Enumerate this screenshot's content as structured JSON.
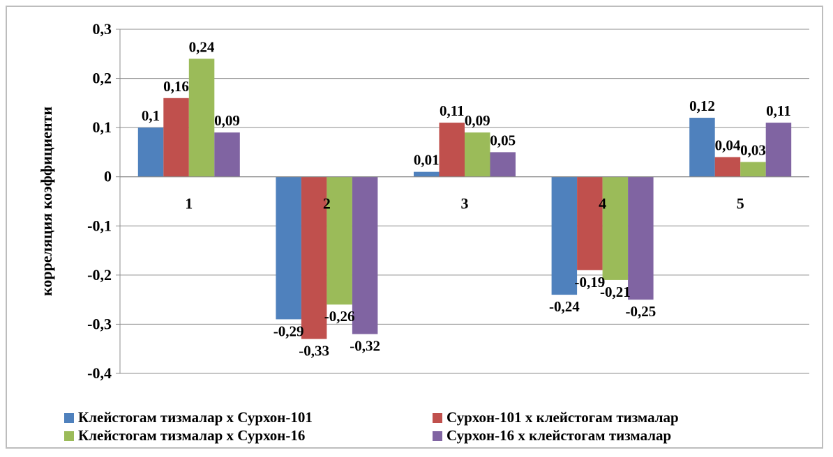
{
  "chart_data": {
    "type": "bar",
    "title": "",
    "xlabel": "",
    "ylabel": "корреляция коэффициенти",
    "ylim": [
      -0.4,
      0.3
    ],
    "yticks": [
      0.3,
      0.2,
      0.1,
      0,
      -0.1,
      -0.2,
      -0.3,
      -0.4
    ],
    "ytick_labels": [
      "0,3",
      "0,2",
      "0,1",
      "0",
      "-0,1",
      "-0,2",
      "-0,3",
      "-0,4"
    ],
    "grid": true,
    "legend_position": "bottom",
    "categories": [
      "1",
      "2",
      "3",
      "4",
      "5"
    ],
    "series": [
      {
        "name": "Клейстогам тизмалар х Сурхон-101",
        "color": "#4f81bd",
        "values": [
          0.1,
          -0.29,
          0.01,
          -0.24,
          0.12
        ],
        "labels": [
          "0,1",
          "-0,29",
          "0,01",
          "-0,24",
          "0,12"
        ]
      },
      {
        "name": "Сурхон-101 х клейстогам тизмалар",
        "color": "#c0504d",
        "values": [
          0.16,
          -0.33,
          0.11,
          -0.19,
          0.04
        ],
        "labels": [
          "0,16",
          "-0,33",
          "0,11",
          "-0,19",
          "0,04"
        ]
      },
      {
        "name": "Клейстогам тизмалар х Сурхон-16",
        "color": "#9bbb59",
        "values": [
          0.24,
          -0.26,
          0.09,
          -0.21,
          0.03
        ],
        "labels": [
          "0,24",
          "-0,26",
          "0,09",
          "-0,21",
          "0,03"
        ]
      },
      {
        "name": "Сурхон-16 х клейстогам тизмалар",
        "color": "#8064a2",
        "values": [
          0.09,
          -0.32,
          0.05,
          -0.25,
          0.11
        ],
        "labels": [
          "0,09",
          "-0,32",
          "0,05",
          "-0,25",
          "0,11"
        ]
      }
    ]
  }
}
